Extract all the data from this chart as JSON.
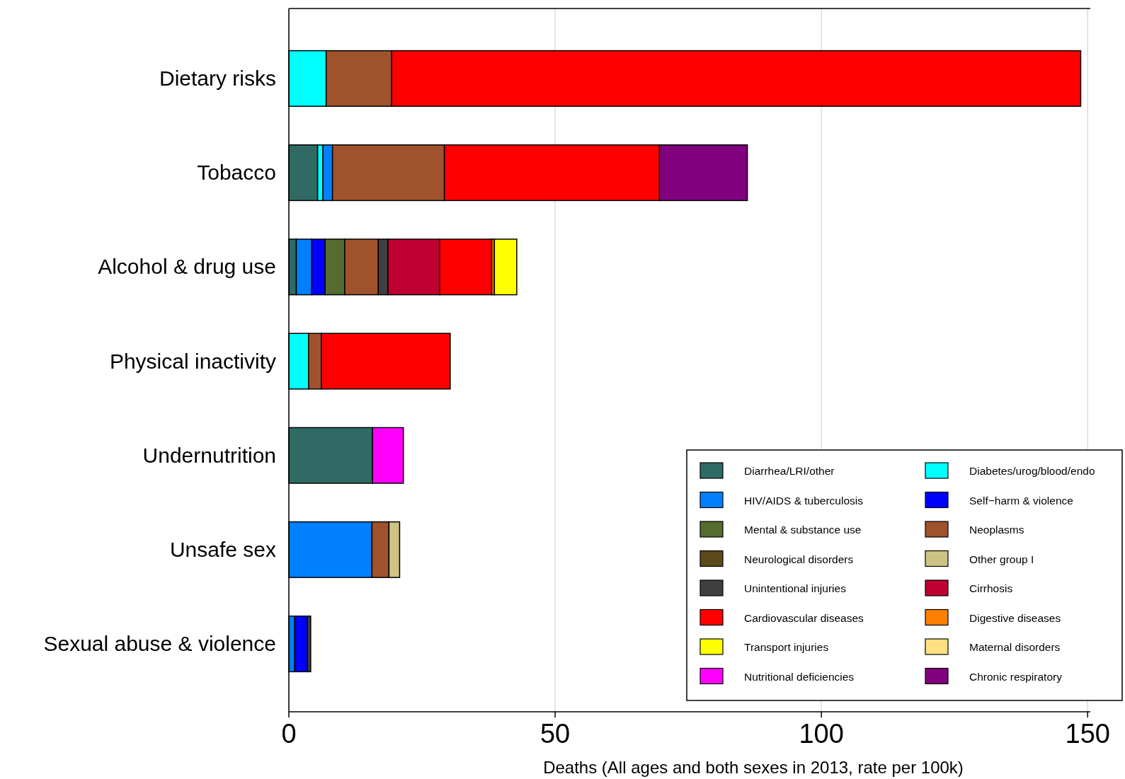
{
  "chart_data": {
    "type": "bar",
    "orientation": "horizontal",
    "stacked": true,
    "xlabel": "Deaths (All ages and both sexes in 2013, rate per 100k)",
    "categories": [
      "Dietary risks",
      "Tobacco",
      "Alcohol & drug use",
      "Physical inactivity",
      "Undernutrition",
      "Unsafe sex",
      "Sexual abuse & violence"
    ],
    "xlim": [
      0,
      150.5
    ],
    "xticks": [
      0,
      50,
      100,
      150
    ],
    "grid": "x",
    "legend": "bottom right",
    "series": [
      {
        "name": "Diarrhea/LRI/other",
        "color": "#2f6b64",
        "values": [
          null,
          5.4,
          1.4,
          null,
          15.7,
          null,
          null
        ]
      },
      {
        "name": "Diabetes/urog/blood/endo",
        "color": "#00ffff",
        "values": [
          7.0,
          1.0,
          null,
          3.7,
          null,
          null,
          null
        ]
      },
      {
        "name": "HIV/AIDS & tuberculosis",
        "color": "#0080ff",
        "values": [
          null,
          1.8,
          2.9,
          null,
          null,
          15.6,
          1.1
        ]
      },
      {
        "name": "Self−harm & violence",
        "color": "#0000ff",
        "values": [
          null,
          null,
          2.5,
          null,
          null,
          null,
          2.4
        ]
      },
      {
        "name": "Mental & substance use",
        "color": "#556b2f",
        "values": [
          null,
          null,
          3.7,
          null,
          null,
          null,
          null
        ]
      },
      {
        "name": "Neoplasms",
        "color": "#a0522d",
        "values": [
          12.3,
          21.0,
          6.3,
          2.4,
          null,
          3.2,
          null
        ]
      },
      {
        "name": "Neurological disorders",
        "color": "#5c4a1a",
        "values": [
          null,
          null,
          null,
          null,
          null,
          null,
          null
        ]
      },
      {
        "name": "Other group I",
        "color": "#cdc384",
        "values": [
          null,
          null,
          null,
          null,
          null,
          2.0,
          null
        ]
      },
      {
        "name": "Unintentional injuries",
        "color": "#404040",
        "values": [
          null,
          null,
          1.8,
          null,
          null,
          null,
          0.6
        ]
      },
      {
        "name": "Cirrhosis",
        "color": "#bf0030",
        "values": [
          null,
          null,
          9.7,
          null,
          null,
          null,
          null
        ]
      },
      {
        "name": "Cardiovascular diseases",
        "color": "#ff0000",
        "values": [
          129.4,
          40.4,
          9.8,
          24.2,
          null,
          null,
          null
        ]
      },
      {
        "name": "Digestive diseases",
        "color": "#ff8000",
        "values": [
          null,
          null,
          0.5,
          null,
          null,
          null,
          null
        ]
      },
      {
        "name": "Transport injuries",
        "color": "#ffff00",
        "values": [
          null,
          null,
          4.2,
          null,
          null,
          null,
          null
        ]
      },
      {
        "name": "Maternal disorders",
        "color": "#ffe080",
        "values": [
          null,
          null,
          null,
          null,
          null,
          null,
          null
        ]
      },
      {
        "name": "Nutritional deficiencies",
        "color": "#ff00ff",
        "values": [
          null,
          null,
          null,
          null,
          5.8,
          null,
          null
        ]
      },
      {
        "name": "Chronic respiratory",
        "color": "#800080",
        "values": [
          null,
          16.5,
          null,
          null,
          null,
          null,
          null
        ]
      }
    ]
  }
}
